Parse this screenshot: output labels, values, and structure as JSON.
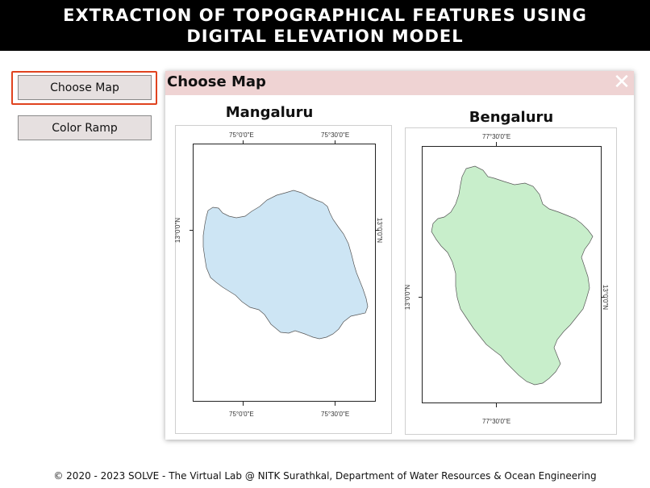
{
  "header": {
    "line1": "EXTRACTION OF TOPOGRAPHICAL FEATURES USING",
    "line2": "DIGITAL ELEVATION MODEL"
  },
  "sidebar": {
    "choose_map_label": "Choose Map",
    "color_ramp_label": "Color Ramp"
  },
  "modal": {
    "title": "Choose Map",
    "close_glyph": "✕",
    "maps": [
      {
        "name": "Mangaluru",
        "fill_color": "#cde5f4",
        "top_ticks": [
          "75°0'0\"E",
          "75°30'0\"E"
        ],
        "bottom_ticks": [
          "75°0'0\"E",
          "75°30'0\"E"
        ],
        "left_tick": "13°0'0\"N",
        "right_tick": "13°0'0\"N"
      },
      {
        "name": "Bengaluru",
        "fill_color": "#c8eecb",
        "top_ticks": [
          "77°30'0\"E"
        ],
        "bottom_ticks": [
          "77°30'0\"E"
        ],
        "left_tick": "13°0'0\"N",
        "right_tick": "13°0'0\"N"
      }
    ]
  },
  "footer": {
    "text": "© 2020 - 2023 SOLVE - The Virtual Lab @ NITK Surathkal, Department of Water Resources & Ocean Engineering"
  },
  "colors": {
    "header_bg": "#000000",
    "accent_highlight": "#e0431f",
    "modal_title_bg": "#efd3d3"
  }
}
